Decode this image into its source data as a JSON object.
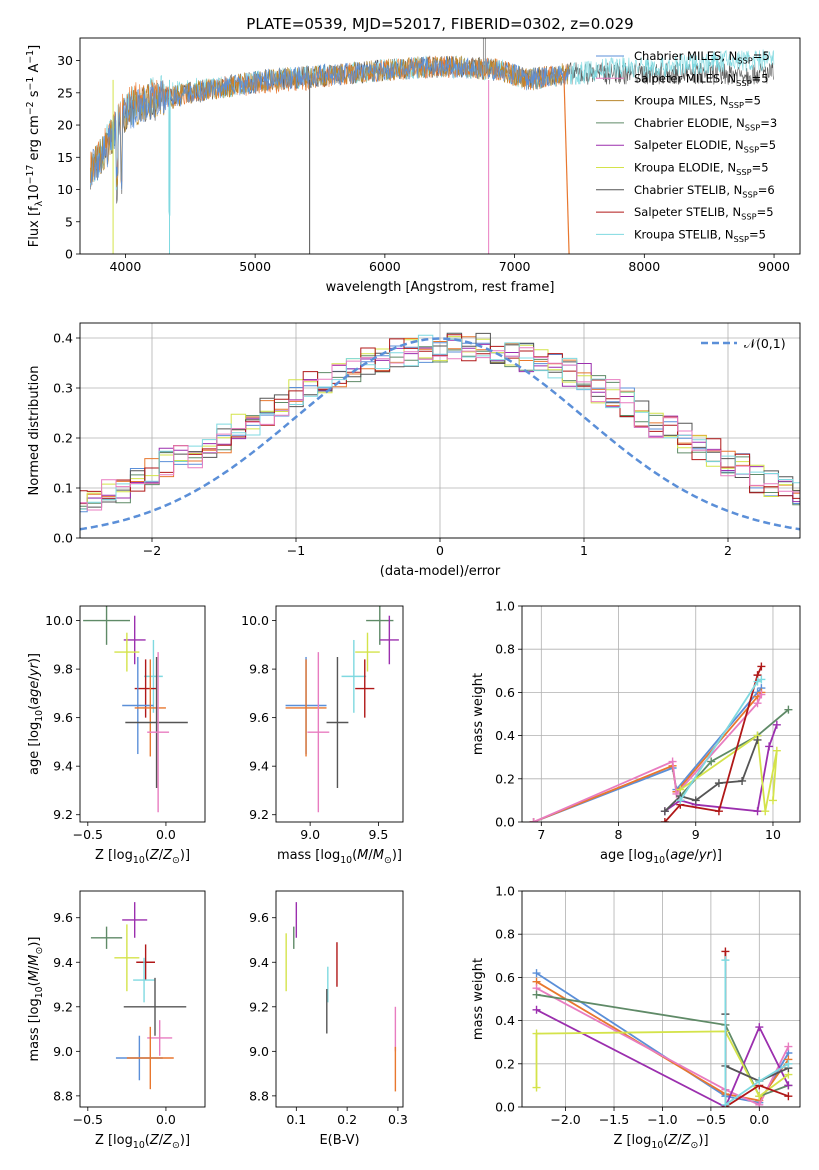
{
  "colors": [
    "#5b8fd8",
    "#e8772e",
    "#b8862b",
    "#5f8a67",
    "#9b2fae",
    "#d4e34a",
    "#555555",
    "#b01818",
    "#7fd9e0",
    "#e87cc0"
  ],
  "series_names": [
    "Chabrier MILES, N<sub>SSP</sub>=5",
    "Salpeter MILES, N<sub>SSP</sub>=5",
    "Kroupa MILES, N<sub>SSP</sub>=5",
    "Chabrier ELODIE, N<sub>SSP</sub>=3",
    "Salpeter ELODIE, N<sub>SSP</sub>=5",
    "Kroupa ELODIE, N<sub>SSP</sub>=5",
    "Chabrier STELIB, N<sub>SSP</sub>=6",
    "Salpeter STELIB, N<sub>SSP</sub>=5",
    "Kroupa STELIB, N<sub>SSP</sub>=5"
  ],
  "chart_data": [
    {
      "type": "line",
      "title": "PLATE=0539, MJD=52017, FIBERID=0302, z=0.029",
      "xlabel": "wavelength [Angstrom, rest frame]",
      "ylabel": "Flux [f<sub>λ</sub>10<sup>−17</sup> erg cm<sup>−2</sup> s<sup>−1</sup> A<sup>−1</sup>]",
      "xlim": [
        3650,
        9200
      ],
      "ylim": [
        0,
        33.5
      ],
      "xticks": [
        4000,
        5000,
        6000,
        7000,
        8000,
        9000
      ],
      "yticks": [
        0,
        5,
        10,
        15,
        20,
        25,
        30
      ],
      "grid": false,
      "legend": "upper-right",
      "series": [
        {
          "name": "Chabrier MILES, N<sub>SSP</sub>=5",
          "x": [
            3730,
            3850,
            3960,
            4100,
            4300,
            4500,
            4800,
            5100,
            5400,
            5700,
            6000,
            6300,
            6600,
            6900,
            7100,
            7400
          ],
          "y": [
            13,
            16,
            21,
            23,
            24,
            25,
            26,
            27,
            27.5,
            28,
            28.5,
            29,
            29,
            28.5,
            27,
            28
          ]
        },
        {
          "name": "Chabrier STELIB, N<sub>SSP</sub>=6",
          "x": [
            3730,
            3850,
            3960,
            4100,
            4300,
            4500,
            4800,
            5100,
            5400,
            5700,
            6000,
            6300,
            6600,
            6900,
            7100,
            7500,
            7800,
            8100,
            8400,
            8700,
            9000
          ],
          "y": [
            12,
            17,
            21,
            24,
            25,
            25.5,
            26,
            27,
            27.5,
            28,
            28.5,
            29,
            29,
            28.5,
            27,
            28,
            29,
            29,
            29.5,
            30,
            30
          ]
        },
        {
          "name": "Kroupa STELIB, N<sub>SSP</sub>=5",
          "x": [
            3730,
            3850,
            3960,
            4100,
            4300,
            4500,
            4800,
            5100,
            5400,
            5700,
            6000,
            6300,
            6600,
            6900,
            7100,
            7500,
            7800,
            8100,
            8400,
            8700,
            9000
          ],
          "y": [
            13,
            17,
            22,
            24,
            24.5,
            25,
            26,
            26.5,
            27,
            28,
            28.5,
            29,
            29,
            28.5,
            27,
            28.5,
            29,
            29,
            29.5,
            30,
            30.5
          ]
        },
        {
          "name": "Salpeter MILES, N<sub>SSP</sub>=5",
          "x": [
            3730,
            3850,
            3960,
            4100,
            4300,
            4500,
            4800,
            5100,
            5400,
            5700,
            6000,
            6300,
            6600,
            6900,
            7100,
            7400
          ],
          "y": [
            13,
            16,
            21,
            23,
            24,
            25,
            26,
            27,
            27.5,
            28,
            28.5,
            29,
            29,
            28.5,
            27,
            28
          ]
        }
      ]
    },
    {
      "type": "step",
      "xlabel": "(data-model)/error",
      "ylabel": "Normed distribution",
      "xlim": [
        -2.5,
        2.5
      ],
      "ylim": [
        0,
        0.43
      ],
      "xticks": [
        -2,
        -1,
        0,
        1,
        2
      ],
      "yticks": [
        0.0,
        0.1,
        0.2,
        0.3,
        0.4
      ],
      "grid": true,
      "legend": "upper-right",
      "legend_label": "𝒩(0,1)",
      "bin_width": 0.1,
      "series_base": [
        0.04,
        0.04,
        0.05,
        0.06,
        0.07,
        0.08,
        0.09,
        0.1,
        0.11,
        0.13,
        0.15,
        0.16,
        0.17,
        0.19,
        0.2,
        0.22,
        0.23,
        0.25,
        0.27,
        0.29,
        0.31,
        0.32,
        0.33,
        0.34,
        0.35,
        0.36,
        0.37,
        0.37,
        0.38,
        0.38,
        0.38,
        0.38,
        0.38,
        0.37,
        0.37,
        0.36,
        0.35,
        0.34,
        0.33,
        0.32,
        0.3,
        0.29,
        0.27,
        0.25,
        0.23,
        0.22,
        0.2,
        0.18,
        0.17,
        0.15,
        0.14,
        0.12,
        0.11,
        0.1,
        0.09,
        0.08,
        0.07,
        0.06,
        0.05,
        0.05
      ],
      "normal_curve": {
        "mean": 0,
        "sigma": 1
      }
    },
    {
      "type": "errorbar",
      "xlabel": "Z [log<sub>10</sub>(<i>Z</i>/<i>Z</i><sub>⊙</sub>)]",
      "ylabel": "age  [log<sub>10</sub>(<i>age</i>/<i>yr</i>)]",
      "xlim": [
        -0.55,
        0.25
      ],
      "ylim": [
        9.17,
        10.06
      ],
      "xticks": [
        -0.5,
        0.0
      ],
      "xticklabels": [
        "−0.5",
        "0.0"
      ],
      "yticks": [
        9.2,
        9.4,
        9.6,
        9.8,
        10.0
      ],
      "points": [
        {
          "x": -0.38,
          "y": 10.0,
          "xerr": 0.15,
          "yerr": 0.1,
          "c": 3
        },
        {
          "x": -0.2,
          "y": 9.92,
          "xerr": 0.07,
          "yerr": 0.1,
          "c": 4
        },
        {
          "x": -0.25,
          "y": 9.87,
          "xerr": 0.08,
          "yerr": 0.08,
          "c": 5
        },
        {
          "x": -0.08,
          "y": 9.77,
          "xerr": 0.06,
          "yerr": 0.15,
          "c": 8
        },
        {
          "x": -0.13,
          "y": 9.72,
          "xerr": 0.07,
          "yerr": 0.12,
          "c": 7
        },
        {
          "x": -0.18,
          "y": 9.65,
          "xerr": 0.1,
          "yerr": 0.2,
          "c": 0
        },
        {
          "x": -0.1,
          "y": 9.64,
          "xerr": 0.1,
          "yerr": 0.2,
          "c": 1
        },
        {
          "x": -0.06,
          "y": 9.58,
          "xerr": 0.2,
          "yerr": 0.27,
          "c": 6
        },
        {
          "x": -0.05,
          "y": 9.54,
          "xerr": 0.07,
          "yerr": 0.33,
          "c": 9
        }
      ]
    },
    {
      "type": "errorbar",
      "xlabel": "mass [log<sub>10</sub>(<i>M</i>/<i>M</i><sub>⊙</sub>)]",
      "xlim": [
        8.75,
        9.68
      ],
      "ylim": [
        9.17,
        10.06
      ],
      "xticks": [
        9.0,
        9.5
      ],
      "yticks": [
        9.2,
        9.4,
        9.6,
        9.8,
        10.0
      ],
      "points": [
        {
          "x": 9.51,
          "y": 10.0,
          "xerr": 0.1,
          "yerr": 0.1,
          "c": 3
        },
        {
          "x": 9.58,
          "y": 9.92,
          "xerr": 0.07,
          "yerr": 0.1,
          "c": 4
        },
        {
          "x": 9.42,
          "y": 9.87,
          "xerr": 0.09,
          "yerr": 0.08,
          "c": 5
        },
        {
          "x": 9.32,
          "y": 9.77,
          "xerr": 0.09,
          "yerr": 0.15,
          "c": 8
        },
        {
          "x": 9.4,
          "y": 9.72,
          "xerr": 0.07,
          "yerr": 0.12,
          "c": 7
        },
        {
          "x": 8.97,
          "y": 9.65,
          "xerr": 0.15,
          "yerr": 0.2,
          "c": 0
        },
        {
          "x": 8.97,
          "y": 9.64,
          "xerr": 0.15,
          "yerr": 0.2,
          "c": 1
        },
        {
          "x": 9.2,
          "y": 9.58,
          "xerr": 0.08,
          "yerr": 0.27,
          "c": 6
        },
        {
          "x": 9.06,
          "y": 9.54,
          "xerr": 0.08,
          "yerr": 0.33,
          "c": 9
        }
      ]
    },
    {
      "type": "line",
      "xlabel": "age  [log<sub>10</sub>(<i>age</i>/<i>yr</i>)]",
      "ylabel": "mass weight",
      "xlim": [
        6.75,
        10.35
      ],
      "ylim": [
        0,
        1.0
      ],
      "xticks": [
        7,
        8,
        9,
        10
      ],
      "yticks": [
        0.0,
        0.2,
        0.4,
        0.6,
        0.8,
        1.0
      ],
      "grid": true,
      "series": [
        {
          "c": 0,
          "x": [
            6.9,
            8.7,
            8.75,
            9.8,
            9.85
          ],
          "y": [
            0.0,
            0.25,
            0.15,
            0.6,
            0.62
          ]
        },
        {
          "c": 1,
          "x": [
            6.9,
            8.7,
            8.75,
            9.8,
            9.85
          ],
          "y": [
            0.0,
            0.26,
            0.14,
            0.58,
            0.6
          ]
        },
        {
          "c": 9,
          "x": [
            6.9,
            8.7,
            8.75,
            9.8,
            9.85
          ],
          "y": [
            0.0,
            0.28,
            0.13,
            0.55,
            0.59
          ]
        },
        {
          "c": 3,
          "x": [
            8.8,
            9.2,
            9.8,
            10.2
          ],
          "y": [
            0.12,
            0.28,
            0.4,
            0.52
          ]
        },
        {
          "c": 4,
          "x": [
            8.6,
            8.8,
            9.0,
            9.8,
            9.95,
            10.05
          ],
          "y": [
            0.05,
            0.1,
            0.08,
            0.05,
            0.35,
            0.45
          ]
        },
        {
          "c": 5,
          "x": [
            8.8,
            9.8,
            9.9,
            10.05,
            10.0
          ],
          "y": [
            0.15,
            0.4,
            0.05,
            0.33,
            0.1
          ]
        },
        {
          "c": 6,
          "x": [
            8.6,
            8.8,
            9.0,
            9.3,
            9.6,
            9.8
          ],
          "y": [
            0.05,
            0.12,
            0.1,
            0.18,
            0.19,
            0.38
          ]
        },
        {
          "c": 7,
          "x": [
            8.6,
            8.8,
            9.3,
            9.8,
            9.85
          ],
          "y": [
            0.0,
            0.08,
            0.05,
            0.68,
            0.72
          ]
        },
        {
          "c": 8,
          "x": [
            8.8,
            9.8,
            9.85
          ],
          "y": [
            0.1,
            0.65,
            0.66
          ]
        }
      ]
    },
    {
      "type": "errorbar",
      "xlabel": "Z [log<sub>10</sub>(<i>Z</i>/<i>Z</i><sub>⊙</sub>)]",
      "ylabel": "mass [log<sub>10</sub>(<i>M</i>/<i>M</i><sub>⊙</sub>)]",
      "xlim": [
        -0.55,
        0.25
      ],
      "ylim": [
        8.75,
        9.72
      ],
      "xticks": [
        -0.5,
        0.0
      ],
      "xticklabels": [
        "−0.5",
        "0.0"
      ],
      "yticks": [
        8.8,
        9.0,
        9.2,
        9.4,
        9.6
      ],
      "points": [
        {
          "x": -0.38,
          "y": 9.51,
          "xerr": 0.1,
          "yerr": 0.05,
          "c": 3
        },
        {
          "x": -0.2,
          "y": 9.59,
          "xerr": 0.08,
          "yerr": 0.08,
          "c": 4
        },
        {
          "x": -0.25,
          "y": 9.42,
          "xerr": 0.08,
          "yerr": 0.15,
          "c": 5
        },
        {
          "x": -0.13,
          "y": 9.4,
          "xerr": 0.06,
          "yerr": 0.08,
          "c": 7
        },
        {
          "x": -0.14,
          "y": 9.32,
          "xerr": 0.07,
          "yerr": 0.1,
          "c": 8
        },
        {
          "x": -0.07,
          "y": 9.2,
          "xerr": 0.2,
          "yerr": 0.13,
          "c": 6
        },
        {
          "x": -0.04,
          "y": 9.06,
          "xerr": 0.08,
          "yerr": 0.08,
          "c": 9
        },
        {
          "x": -0.17,
          "y": 8.97,
          "xerr": 0.15,
          "yerr": 0.1,
          "c": 0
        },
        {
          "x": -0.1,
          "y": 8.97,
          "xerr": 0.15,
          "yerr": 0.14,
          "c": 1
        }
      ]
    },
    {
      "type": "errorbar",
      "xlabel": "E(B-V)",
      "xlim": [
        0.06,
        0.31
      ],
      "ylim": [
        8.75,
        9.72
      ],
      "xticks": [
        0.1,
        0.2,
        0.3
      ],
      "yticks": [
        8.8,
        9.0,
        9.2,
        9.4,
        9.6
      ],
      "points": [
        {
          "x": 0.1,
          "y": 9.59,
          "xerr": 0,
          "yerr": 0.08,
          "c": 4
        },
        {
          "x": 0.08,
          "y": 9.4,
          "xerr": 0,
          "yerr": 0.13,
          "c": 5
        },
        {
          "x": 0.095,
          "y": 9.51,
          "xerr": 0,
          "yerr": 0.05,
          "c": 3
        },
        {
          "x": 0.18,
          "y": 9.39,
          "xerr": 0,
          "yerr": 0.1,
          "c": 7
        },
        {
          "x": 0.162,
          "y": 9.3,
          "xerr": 0,
          "yerr": 0.08,
          "c": 8
        },
        {
          "x": 0.16,
          "y": 9.18,
          "xerr": 0,
          "yerr": 0.1,
          "c": 6
        },
        {
          "x": 0.295,
          "y": 9.1,
          "xerr": 0,
          "yerr": 0.1,
          "c": 9
        },
        {
          "x": 0.295,
          "y": 8.92,
          "xerr": 0,
          "yerr": 0.1,
          "c": 1
        }
      ]
    },
    {
      "type": "line",
      "xlabel": "Z [log<sub>10</sub>(<i>Z</i>/<i>Z</i><sub>⊙</sub>)]",
      "ylabel": "mass weight",
      "xlim": [
        -2.45,
        0.42
      ],
      "ylim": [
        0,
        1.0
      ],
      "xticks": [
        -2.0,
        -1.5,
        -1.0,
        -0.5,
        0.0
      ],
      "xticklabels": [
        "−2.0",
        "−1.5",
        "−1.0",
        "−0.5",
        "0.0"
      ],
      "yticks": [
        0.0,
        0.2,
        0.4,
        0.6,
        0.8,
        1.0
      ],
      "grid": true,
      "series": [
        {
          "c": 0,
          "x": [
            -2.3,
            -0.35,
            0.0,
            0.3
          ],
          "y": [
            0.62,
            0.05,
            0.02,
            0.25
          ]
        },
        {
          "c": 1,
          "x": [
            -2.3,
            -0.35,
            0.0,
            0.3
          ],
          "y": [
            0.58,
            0.06,
            0.03,
            0.22
          ]
        },
        {
          "c": 9,
          "x": [
            -2.3,
            -0.35,
            0.0,
            0.3
          ],
          "y": [
            0.55,
            0.08,
            0.01,
            0.28
          ]
        },
        {
          "c": 3,
          "x": [
            -2.3,
            -0.35,
            0.0,
            0.3
          ],
          "y": [
            0.52,
            0.38,
            0.05,
            0.1
          ]
        },
        {
          "c": 4,
          "x": [
            -2.3,
            -0.35,
            0.0,
            0.3
          ],
          "y": [
            0.45,
            0.0,
            0.37,
            0.1
          ]
        },
        {
          "c": 5,
          "x": [
            -2.3,
            -2.3,
            -0.35,
            0.0,
            0.3
          ],
          "y": [
            0.09,
            0.34,
            0.35,
            0.05,
            0.15
          ]
        },
        {
          "c": 6,
          "x": [
            -0.35,
            -0.35,
            0.0,
            0.3
          ],
          "y": [
            0.43,
            0.19,
            0.12,
            0.18
          ]
        },
        {
          "c": 7,
          "x": [
            -0.35,
            -0.35,
            0.0,
            0.3
          ],
          "y": [
            0.72,
            0.0,
            0.1,
            0.05
          ]
        },
        {
          "c": 8,
          "x": [
            -0.35,
            -0.35,
            0.0,
            0.3
          ],
          "y": [
            0.68,
            0.01,
            0.12,
            0.2
          ]
        }
      ]
    }
  ]
}
